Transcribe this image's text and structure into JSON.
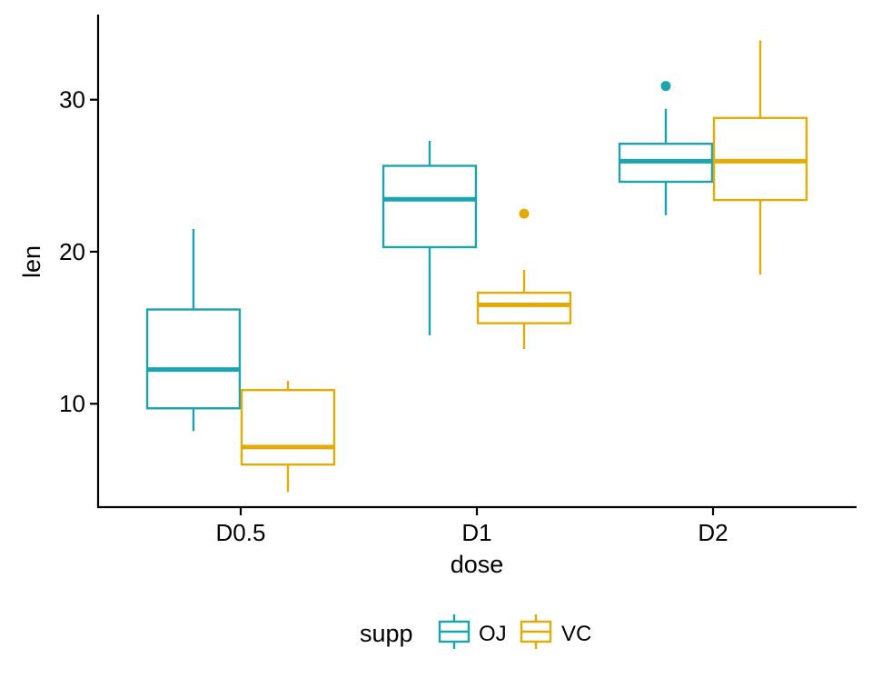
{
  "chart_data": {
    "type": "boxplot",
    "title": "",
    "xlabel": "dose",
    "ylabel": "len",
    "categories": [
      "D0.5",
      "D1",
      "D2"
    ],
    "ylim": [
      3.2,
      35.6
    ],
    "yticks": [
      10,
      20,
      30
    ],
    "grid": false,
    "legend": {
      "title": "supp",
      "position": "bottom",
      "entries": [
        "OJ",
        "VC"
      ]
    },
    "series": [
      {
        "name": "OJ",
        "color": "#1ba3b0",
        "boxes": [
          {
            "category": "D0.5",
            "min": 8.2,
            "q1": 9.7,
            "median": 12.25,
            "q3": 16.2,
            "max": 21.5,
            "outliers": []
          },
          {
            "category": "D1",
            "min": 14.5,
            "q1": 20.3,
            "median": 23.45,
            "q3": 25.65,
            "max": 27.3,
            "outliers": []
          },
          {
            "category": "D2",
            "min": 22.4,
            "q1": 24.6,
            "median": 25.95,
            "q3": 27.1,
            "max": 29.4,
            "outliers": [
              30.9
            ]
          }
        ]
      },
      {
        "name": "VC",
        "color": "#e2ab06",
        "boxes": [
          {
            "category": "D0.5",
            "min": 4.2,
            "q1": 6.0,
            "median": 7.15,
            "q3": 10.9,
            "max": 11.5,
            "outliers": []
          },
          {
            "category": "D1",
            "min": 13.6,
            "q1": 15.3,
            "median": 16.5,
            "q3": 17.3,
            "max": 18.8,
            "outliers": [
              22.5
            ]
          },
          {
            "category": "D2",
            "min": 18.5,
            "q1": 23.4,
            "median": 25.95,
            "q3": 28.8,
            "max": 33.9,
            "outliers": []
          }
        ]
      }
    ]
  }
}
